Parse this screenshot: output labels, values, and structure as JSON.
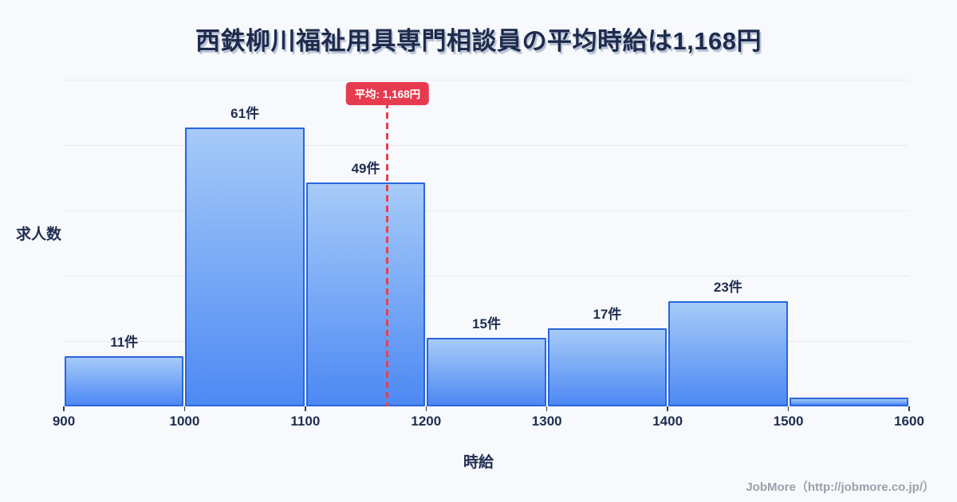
{
  "title": {
    "text": "西鉄柳川福祉用具専門相談員の平均時給は1,168円"
  },
  "axes": {
    "y_label": "求人数",
    "x_label": "時給"
  },
  "mean_badge": {
    "label": "平均: 1,168円"
  },
  "footer": {
    "text": "JobMore（http://jobmore.co.jp/）"
  },
  "chart_data": {
    "type": "bar",
    "subtype": "histogram",
    "title": "西鉄柳川福祉用具専門相談員の平均時給は1,168円",
    "xlabel": "時給",
    "ylabel": "求人数",
    "unit": "件",
    "bin_edges": [
      900,
      1000,
      1100,
      1200,
      1300,
      1400,
      1500,
      1600
    ],
    "categories": [
      "900-1000",
      "1000-1100",
      "1100-1200",
      "1200-1300",
      "1300-1400",
      "1400-1500",
      "1500-1600"
    ],
    "values": [
      11,
      61,
      49,
      15,
      17,
      23,
      2
    ],
    "bar_labels": [
      "11件",
      "61件",
      "49件",
      "15件",
      "17件",
      "23件",
      ""
    ],
    "x_tick_labels": [
      "900",
      "1000",
      "1100",
      "1200",
      "1300",
      "1400",
      "1500",
      "1600"
    ],
    "mean_line": {
      "x": 1168,
      "label": "平均: 1,168円"
    },
    "xlim": [
      900,
      1600
    ],
    "ylim": [
      0,
      72
    ],
    "grid": true,
    "legend": false
  },
  "colors": {
    "background": "#f7f9fc",
    "title_text": "#1e2b4d",
    "bar_fill_top": "#a6cbf8",
    "bar_fill_bottom": "#4d89f4",
    "bar_border": "#2a65dd",
    "grid_line": "#e7ebf2",
    "label_text": "#1f2d4f",
    "mean_red": "#e63b4e",
    "footer_text": "#99a1ab"
  }
}
